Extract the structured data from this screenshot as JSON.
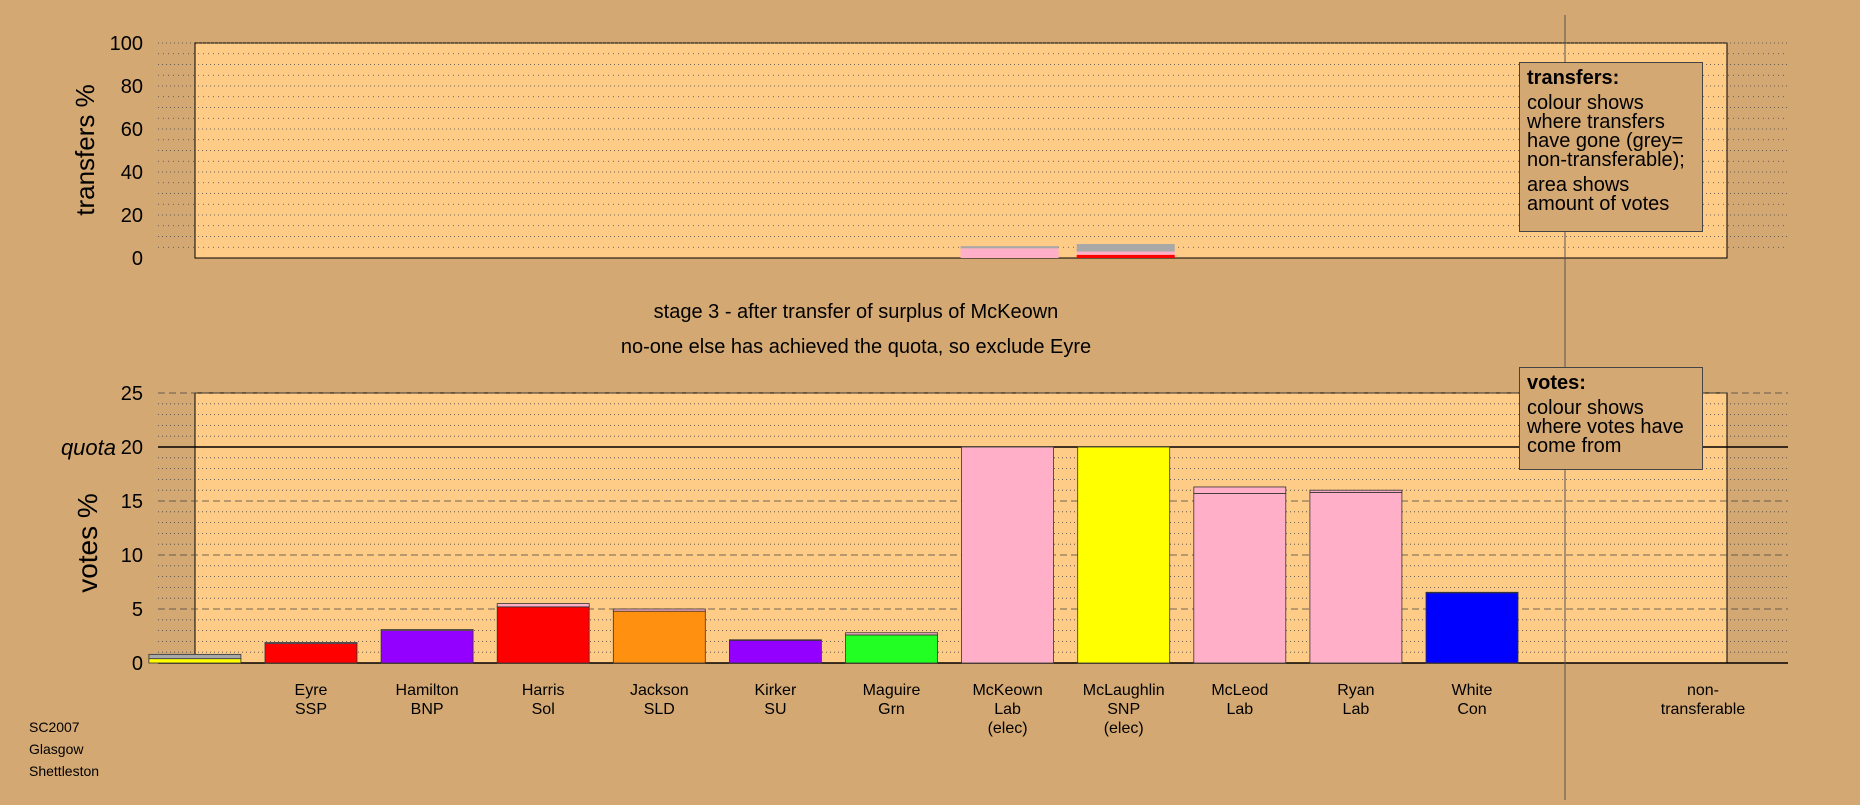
{
  "chart_data": [
    {
      "type": "bar",
      "id": "transfers",
      "ylabel": "transfers %",
      "ylim": [
        0,
        100
      ],
      "yticks": [
        0,
        20,
        40,
        60,
        80,
        100
      ],
      "grid": "dotted every 5, dashed every 10",
      "categories": [
        "Eyre SSP",
        "Hamilton BNP",
        "Harris Sol",
        "Jackson SLD",
        "Kirker SU",
        "Maguire Grn",
        "McKeown Lab (elec)",
        "McLaughlin SNP (elec)",
        "McLeod Lab",
        "Ryan Lab",
        "White Con",
        "non-transferable"
      ],
      "bars": [
        {
          "category": "McKeown Lab (elec)",
          "segments": [
            {
              "value": 4.5,
              "color": "#ffb0c8"
            },
            {
              "value": 1.0,
              "color": "#a8a8a8"
            }
          ]
        },
        {
          "category": "McLaughlin SNP (elec)",
          "segments": [
            {
              "value": 1.5,
              "color": "#ff0000"
            },
            {
              "value": 1.5,
              "color": "#ffb0c8"
            },
            {
              "value": 3.5,
              "color": "#a8a8a8"
            }
          ]
        }
      ],
      "legend": {
        "title": "transfers:",
        "lines": [
          "colour shows where transfers have gone (grey= non-transferable);",
          "area shows amount of votes"
        ],
        "placement": "top-right"
      }
    },
    {
      "type": "bar",
      "id": "votes",
      "ylabel": "votes %",
      "ylim": [
        0,
        25
      ],
      "yticks": [
        0,
        5,
        10,
        15,
        20,
        25
      ],
      "quota": 20,
      "quota_label": "quota",
      "grid": "dotted every 1, dashed every 5",
      "categories": [
        {
          "lines": [
            "Eyre",
            "SSP"
          ]
        },
        {
          "lines": [
            "Hamilton",
            "BNP"
          ]
        },
        {
          "lines": [
            "Harris",
            "Sol"
          ]
        },
        {
          "lines": [
            "Jackson",
            "SLD"
          ]
        },
        {
          "lines": [
            "Kirker",
            "SU"
          ]
        },
        {
          "lines": [
            "Maguire",
            "Grn"
          ]
        },
        {
          "lines": [
            "McKeown",
            "Lab",
            "(elec)"
          ]
        },
        {
          "lines": [
            "McLaughlin",
            "SNP",
            "(elec)"
          ]
        },
        {
          "lines": [
            "McLeod",
            "Lab"
          ]
        },
        {
          "lines": [
            "Ryan",
            "Lab"
          ]
        },
        {
          "lines": [
            "White",
            "Con"
          ]
        },
        {
          "lines": [
            "non-",
            "transferable"
          ]
        }
      ],
      "bars": [
        {
          "category": "Eyre SSP",
          "segments": [
            {
              "value": 1.8,
              "color": "#ff0000"
            },
            {
              "value": 0.1,
              "color": "#ffb0c8"
            }
          ]
        },
        {
          "category": "Hamilton BNP",
          "segments": [
            {
              "value": 3.0,
              "color": "#9400ff"
            },
            {
              "value": 0.1,
              "color": "#ffb0c8"
            }
          ]
        },
        {
          "category": "Harris Sol",
          "segments": [
            {
              "value": 5.2,
              "color": "#ff0000"
            },
            {
              "value": 0.3,
              "color": "#ffb0c8"
            }
          ]
        },
        {
          "category": "Jackson SLD",
          "segments": [
            {
              "value": 4.8,
              "color": "#ff9010"
            },
            {
              "value": 0.2,
              "color": "#ffb0c8"
            }
          ]
        },
        {
          "category": "Kirker SU",
          "segments": [
            {
              "value": 2.1,
              "color": "#9400ff"
            },
            {
              "value": 0.05,
              "color": "#ffb0c8"
            }
          ]
        },
        {
          "category": "Maguire Grn",
          "segments": [
            {
              "value": 2.6,
              "color": "#22ff22"
            },
            {
              "value": 0.2,
              "color": "#ffb0c8"
            }
          ]
        },
        {
          "category": "McKeown Lab (elec)",
          "segments": [
            {
              "value": 20.0,
              "color": "#ffb0c8"
            }
          ]
        },
        {
          "category": "McLaughlin SNP (elec)",
          "segments": [
            {
              "value": 20.0,
              "color": "#ffff00"
            }
          ]
        },
        {
          "category": "McLeod Lab",
          "segments": [
            {
              "value": 15.7,
              "color": "#ffb0c8"
            },
            {
              "value": 0.6,
              "color": "#ffb0c8"
            }
          ]
        },
        {
          "category": "Ryan Lab",
          "segments": [
            {
              "value": 15.8,
              "color": "#ffb0c8"
            },
            {
              "value": 0.2,
              "color": "#ffb0c8"
            }
          ]
        },
        {
          "category": "White Con",
          "segments": [
            {
              "value": 6.5,
              "color": "#0000ff"
            },
            {
              "value": 0.05,
              "color": "#ffb0c8"
            }
          ]
        },
        {
          "category": "non-transferable",
          "segments": [
            {
              "value": 0.4,
              "color": "#ffff00"
            },
            {
              "value": 0.4,
              "color": "#a8a8a8"
            }
          ]
        }
      ],
      "legend": {
        "title": "votes:",
        "lines": [
          "colour shows where votes have come from"
        ],
        "placement": "top-right"
      }
    }
  ],
  "stage_line": "stage 3 - after transfer of surplus of McKeown",
  "status_line": "no-one else has achieved the quota, so exclude Eyre",
  "caption": [
    "SC2007",
    "Glasgow",
    "Shettleston"
  ],
  "colors": {
    "background": "#d4a872",
    "plot_area": "#ffcc88"
  }
}
